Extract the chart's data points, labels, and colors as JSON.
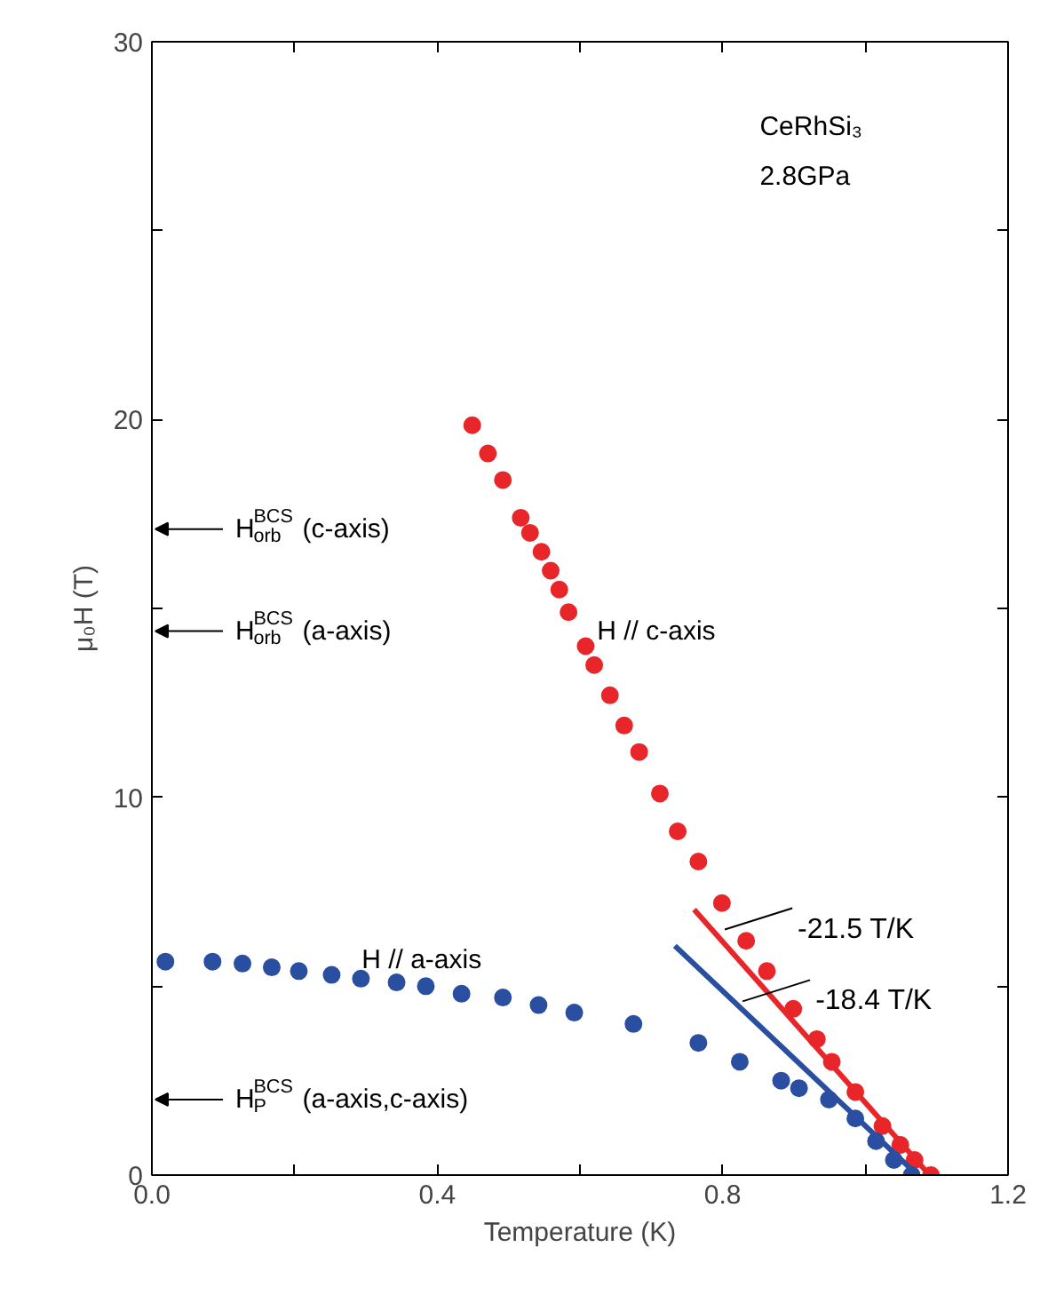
{
  "chart_data": {
    "type": "scatter",
    "xlabel": "Temperature (K)",
    "ylabel": "μ₀H (T)",
    "xlim": [
      0,
      1.2
    ],
    "ylim": [
      0,
      30
    ],
    "xticks": [
      {
        "value": 0,
        "label": "0.0"
      },
      {
        "value": 0.2,
        "label": null
      },
      0.4,
      {
        "value": 0.6,
        "label": null
      },
      0.8,
      {
        "value": 1.0,
        "label": null
      },
      1.2
    ],
    "yticks": [
      0,
      {
        "value": 5,
        "label": null
      },
      10,
      {
        "value": 15,
        "label": null
      },
      20,
      {
        "value": 25,
        "label": null
      },
      30
    ],
    "grid": false,
    "series": [
      {
        "marker": "circle",
        "color": "#e8262a",
        "x": [
          0.449,
          0.471,
          0.492,
          0.517,
          0.53,
          0.546,
          0.559,
          0.571,
          0.584,
          0.608,
          0.62,
          0.642,
          0.662,
          0.683,
          0.712,
          0.737,
          0.766,
          0.799,
          0.833,
          0.862,
          0.899,
          0.932,
          0.953,
          0.986,
          1.024,
          1.049,
          1.069,
          1.092
        ],
        "values": [
          19.85,
          19.1,
          18.4,
          17.4,
          17.0,
          16.5,
          16.0,
          15.5,
          14.9,
          14.0,
          13.5,
          12.7,
          11.9,
          11.2,
          10.1,
          9.1,
          8.3,
          7.2,
          6.2,
          5.4,
          4.4,
          3.6,
          3.0,
          2.2,
          1.3,
          0.8,
          0.4,
          0.0
        ]
      },
      {
        "marker": "circle",
        "color": "#2a4fa0",
        "x": [
          0.019,
          0.085,
          0.127,
          0.168,
          0.206,
          0.252,
          0.293,
          0.343,
          0.384,
          0.434,
          0.492,
          0.542,
          0.592,
          0.675,
          0.766,
          0.824,
          0.882,
          0.907,
          0.949,
          0.986,
          1.015,
          1.04,
          1.065
        ],
        "values": [
          5.65,
          5.65,
          5.6,
          5.5,
          5.4,
          5.3,
          5.2,
          5.1,
          5.0,
          4.8,
          4.7,
          4.5,
          4.3,
          4.0,
          3.5,
          3.0,
          2.5,
          2.3,
          2.0,
          1.5,
          0.9,
          0.4,
          0.0
        ]
      },
      {
        "type": "line",
        "color": "#e8262a",
        "x": [
          0.76,
          1.09
        ],
        "values": [
          7.03,
          0
        ]
      },
      {
        "type": "line",
        "color": "#2a4fa0",
        "x": [
          0.733,
          1.073
        ],
        "values": [
          6.07,
          0
        ]
      }
    ],
    "annotations": [
      "CeRhSi₃\n2.8GPa",
      "H // c-axis",
      "H // a-axis",
      {
        "text": "-21.5 T/K",
        "x": 0.803,
        "y": 6.5
      },
      {
        "text": "-18.4 T/K",
        "x": 0.828,
        "y": 4.6
      },
      "H$_{orb}$$^{BCS}$ (c-axis)",
      "H$_{orb}$$^{BCS}$ (a-axis)",
      "H$_{P}$$^{BCS}$ (a-axis,c-axis)"
    ]
  }
}
